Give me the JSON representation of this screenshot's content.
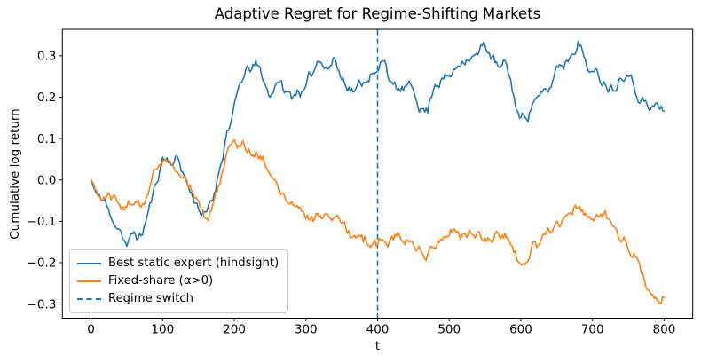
{
  "chart_data": {
    "type": "line",
    "title": "Adaptive Regret for Regime-Shifting Markets",
    "xlabel": "t",
    "ylabel": "Cumulative log return",
    "xlim": [
      -40,
      840
    ],
    "ylim": [
      -0.334,
      0.364
    ],
    "grid": false,
    "x_step": 10,
    "x_ticks": [
      {
        "value": 0,
        "label": "0"
      },
      {
        "value": 100,
        "label": "100"
      },
      {
        "value": 200,
        "label": "200"
      },
      {
        "value": 300,
        "label": "300"
      },
      {
        "value": 400,
        "label": "400"
      },
      {
        "value": 500,
        "label": "500"
      },
      {
        "value": 600,
        "label": "600"
      },
      {
        "value": 700,
        "label": "700"
      },
      {
        "value": 800,
        "label": "800"
      }
    ],
    "y_ticks": [
      {
        "value": 0.3,
        "label": "0.3"
      },
      {
        "value": 0.2,
        "label": "0.2"
      },
      {
        "value": 0.1,
        "label": "0.1"
      },
      {
        "value": 0.0,
        "label": "0.0"
      },
      {
        "value": -0.1,
        "label": "−0.1"
      },
      {
        "value": -0.2,
        "label": "−0.2"
      },
      {
        "value": -0.3,
        "label": "−0.3"
      }
    ],
    "series": [
      {
        "name": "Best static expert (hindsight)",
        "color": "#1f77b4",
        "style": "solid",
        "values": [
          0.0,
          -0.035,
          -0.05,
          -0.1,
          -0.12,
          -0.16,
          -0.125,
          -0.135,
          -0.075,
          -0.01,
          0.055,
          0.045,
          0.058,
          0.01,
          -0.03,
          -0.07,
          -0.078,
          -0.05,
          0.03,
          0.12,
          0.185,
          0.235,
          0.27,
          0.288,
          0.24,
          0.2,
          0.235,
          0.21,
          0.195,
          0.212,
          0.228,
          0.258,
          0.285,
          0.268,
          0.295,
          0.242,
          0.224,
          0.222,
          0.235,
          0.256,
          0.262,
          0.288,
          0.235,
          0.22,
          0.226,
          0.218,
          0.172,
          0.162,
          0.23,
          0.246,
          0.252,
          0.27,
          0.282,
          0.292,
          0.302,
          0.325,
          0.298,
          0.272,
          0.28,
          0.205,
          0.15,
          0.14,
          0.196,
          0.212,
          0.222,
          0.276,
          0.268,
          0.3,
          0.335,
          0.292,
          0.262,
          0.24,
          0.222,
          0.216,
          0.244,
          0.25,
          0.208,
          0.2,
          0.168,
          0.186,
          0.166
        ]
      },
      {
        "name": "Fixed-share (α>0)",
        "color": "#ff7f0e",
        "style": "solid",
        "values": [
          0.0,
          -0.04,
          -0.045,
          -0.04,
          -0.06,
          -0.066,
          -0.06,
          -0.066,
          -0.035,
          0.025,
          0.046,
          0.042,
          0.02,
          0.008,
          -0.025,
          -0.05,
          -0.092,
          -0.06,
          -0.01,
          0.07,
          0.097,
          0.086,
          0.076,
          0.068,
          0.058,
          0.012,
          -0.012,
          -0.038,
          -0.052,
          -0.068,
          -0.095,
          -0.1,
          -0.086,
          -0.082,
          -0.092,
          -0.105,
          -0.122,
          -0.14,
          -0.15,
          -0.163,
          -0.158,
          -0.15,
          -0.136,
          -0.13,
          -0.146,
          -0.155,
          -0.17,
          -0.18,
          -0.164,
          -0.146,
          -0.135,
          -0.128,
          -0.13,
          -0.128,
          -0.125,
          -0.14,
          -0.152,
          -0.136,
          -0.14,
          -0.175,
          -0.205,
          -0.196,
          -0.15,
          -0.136,
          -0.125,
          -0.1,
          -0.092,
          -0.082,
          -0.067,
          -0.08,
          -0.095,
          -0.088,
          -0.092,
          -0.112,
          -0.15,
          -0.17,
          -0.185,
          -0.225,
          -0.27,
          -0.29,
          -0.285
        ]
      }
    ],
    "annotations": [
      {
        "label": "Regime switch",
        "type": "vline",
        "x": 400,
        "color": "#1f77b4",
        "style": "dashed"
      }
    ],
    "legend": {
      "position": "lower left",
      "entries": [
        {
          "label": "Best static expert (hindsight)",
          "color": "#1f77b4",
          "style": "solid"
        },
        {
          "label": "Fixed-share (α>0)",
          "color": "#ff7f0e",
          "style": "solid"
        },
        {
          "label": "Regime switch",
          "color": "#1f77b4",
          "style": "dashed"
        }
      ]
    },
    "noise": {
      "amplitude": 0.013,
      "seed": 11,
      "substeps": 5
    }
  }
}
